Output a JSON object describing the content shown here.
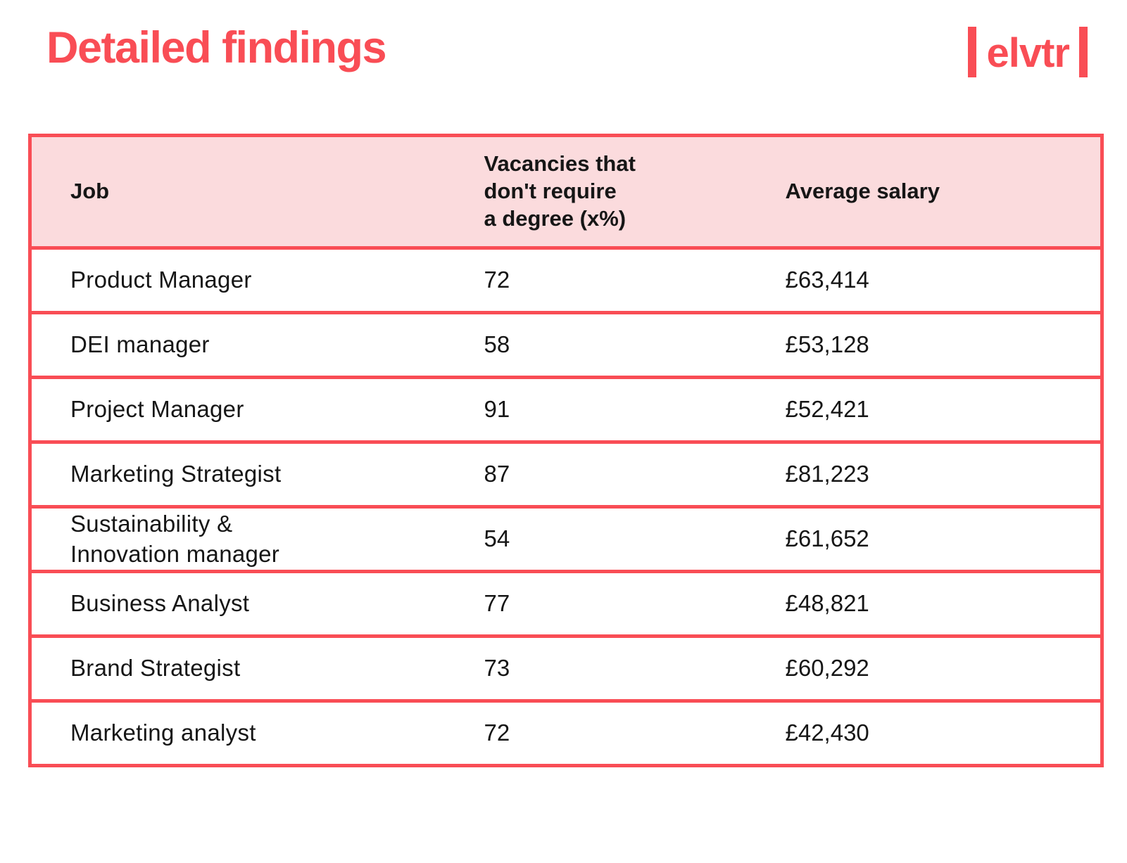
{
  "header": {
    "title": "Detailed findings",
    "logo_text": "elvtr"
  },
  "colors": {
    "accent_red": "#F94D55",
    "header_row_bg": "#FBDBDD",
    "body_text": "#161616",
    "page_bg": "#FFFFFF"
  },
  "chart_data": {
    "type": "table",
    "title": "Detailed findings",
    "columns": [
      "Job",
      "Vacancies that\ndon't require\na degree (x%)",
      "Average salary"
    ],
    "rows": [
      {
        "job": "Product Manager",
        "vacancies_no_degree_pct": 72,
        "avg_salary": "£63,414"
      },
      {
        "job": "DEI manager",
        "vacancies_no_degree_pct": 58,
        "avg_salary": "£53,128"
      },
      {
        "job": "Project Manager",
        "vacancies_no_degree_pct": 91,
        "avg_salary": "£52,421"
      },
      {
        "job": "Marketing Strategist",
        "vacancies_no_degree_pct": 87,
        "avg_salary": "£81,223"
      },
      {
        "job": "Sustainability &\nInnovation manager",
        "vacancies_no_degree_pct": 54,
        "avg_salary": "£61,652"
      },
      {
        "job": "Business Analyst",
        "vacancies_no_degree_pct": 77,
        "avg_salary": "£48,821"
      },
      {
        "job": "Brand Strategist",
        "vacancies_no_degree_pct": 73,
        "avg_salary": "£60,292"
      },
      {
        "job": "Marketing analyst",
        "vacancies_no_degree_pct": 72,
        "avg_salary": "£42,430"
      }
    ]
  }
}
